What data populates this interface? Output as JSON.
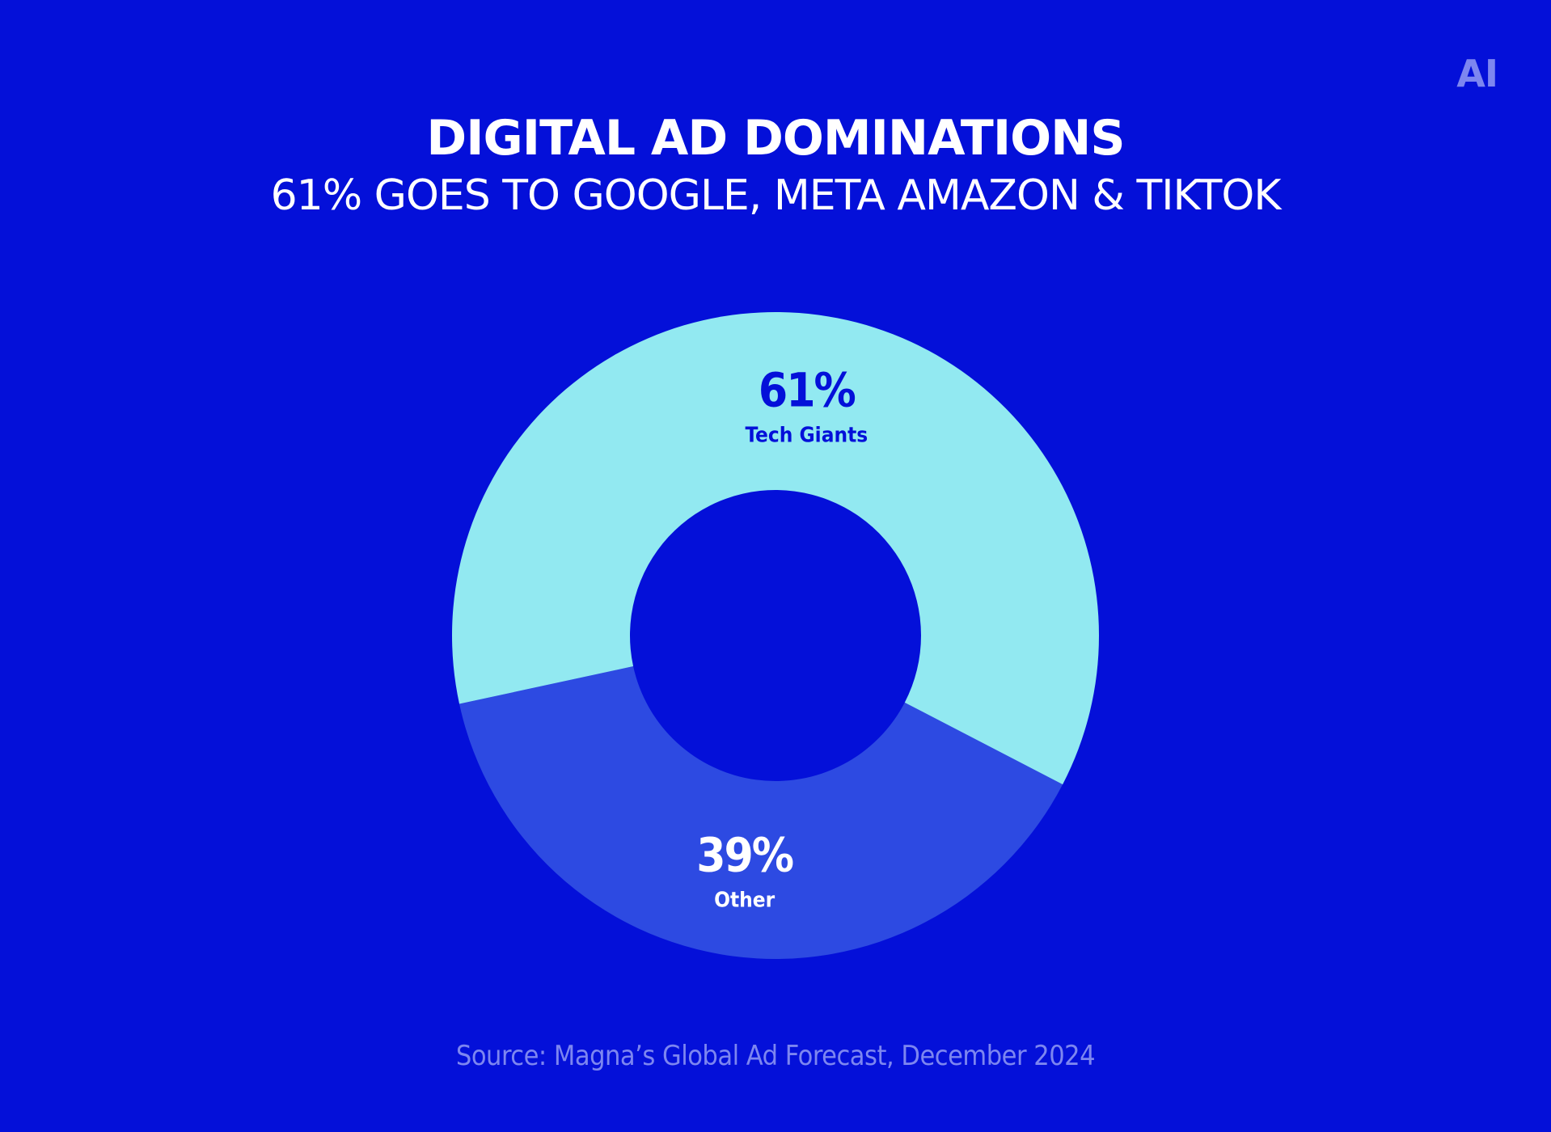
{
  "logo": "AI",
  "title": "DIGITAL AD DOMINATIONS",
  "subtitle": "61% GOES TO GOOGLE, META AMAZON & TIKTOK",
  "source": "Source: Magna’s Global Ad Forecast, December 2024",
  "colors": {
    "background": "#0410d9",
    "other": "#2d4ae2",
    "tech_giants": "#92e9f1",
    "muted_text": "#7d86f0"
  },
  "chart_data": {
    "type": "pie",
    "title": "DIGITAL AD DOMINATIONS",
    "subtitle": "61% GOES TO GOOGLE, META AMAZON & TIKTOK",
    "donut": true,
    "slices": [
      {
        "label": "Other",
        "value": 39,
        "display": "39%",
        "color": "#2d4ae2",
        "text_color": "#ffffff"
      },
      {
        "label": "Tech Giants",
        "value": 61,
        "display": "61%",
        "color": "#92e9f1",
        "text_color": "#0410d9"
      }
    ]
  }
}
